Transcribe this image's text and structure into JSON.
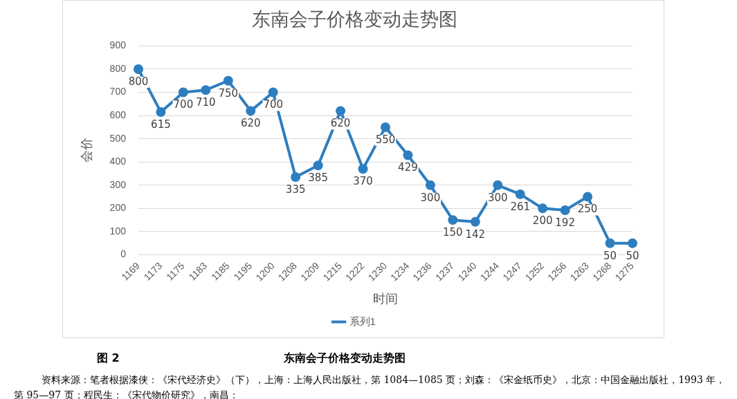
{
  "chart_data": {
    "type": "line",
    "title": "东南会子价格变动走势图",
    "xlabel": "时间",
    "ylabel": "会价",
    "categories": [
      "1169",
      "1173",
      "1175",
      "1183",
      "1185",
      "1195",
      "1200",
      "1208",
      "1209",
      "1215",
      "1222",
      "1230",
      "1234",
      "1236",
      "1237",
      "1240",
      "1244",
      "1247",
      "1252",
      "1256",
      "1263",
      "1268",
      "1275"
    ],
    "series": [
      {
        "name": "系列1",
        "color": "#2e7ebf",
        "values": [
          800,
          615,
          700,
          710,
          750,
          620,
          700,
          335,
          385,
          620,
          370,
          550,
          429,
          300,
          150,
          142,
          300,
          261,
          200,
          192,
          250,
          50,
          50
        ]
      }
    ],
    "ylim": [
      0,
      900
    ],
    "yticks": [
      0,
      100,
      200,
      300,
      400,
      500,
      600,
      700,
      800,
      900
    ],
    "grid": "y",
    "legend": "bottom",
    "marker": "circle",
    "line_style": "solid",
    "data_labels": true,
    "annotations": [
      "图 2",
      "东南会子价格变动走势图",
      "资料来源：笔者根据漆侠：《宋代经济史》（下），上海：上海人民出版社，第 1084—1085 页；刘森：《宋金纸币史》，北京：中国金融出版社，1993 年，第 95—97 页；程民生：《宋代物价研究》，南昌："
    ]
  }
}
